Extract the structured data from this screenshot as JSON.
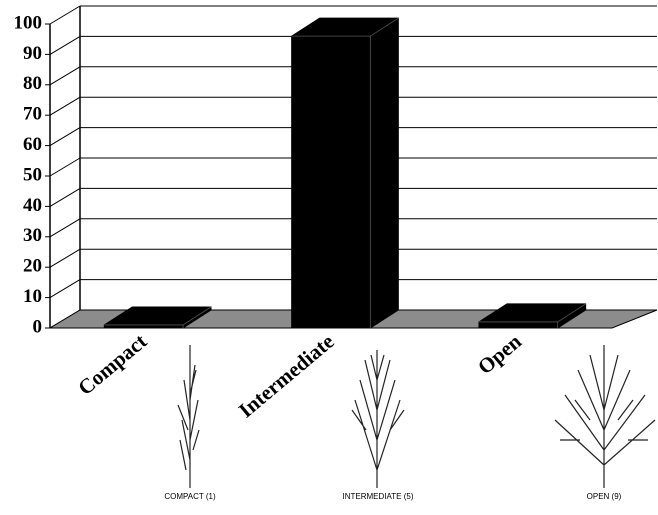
{
  "chart_data": {
    "type": "bar3d",
    "categories": [
      "Compact",
      "Intermediate",
      "Open"
    ],
    "values": [
      1,
      96,
      2
    ],
    "color": "#000000",
    "floor_color": "#8c8c8c",
    "ylim": [
      0,
      100
    ],
    "yticks": [
      0,
      10,
      20,
      30,
      40,
      50,
      60,
      70,
      80,
      90,
      100
    ],
    "grid": true,
    "tree_captions": [
      "COMPACT (1)",
      "INTERMEDIATE (5)",
      "OPEN (9)"
    ]
  }
}
